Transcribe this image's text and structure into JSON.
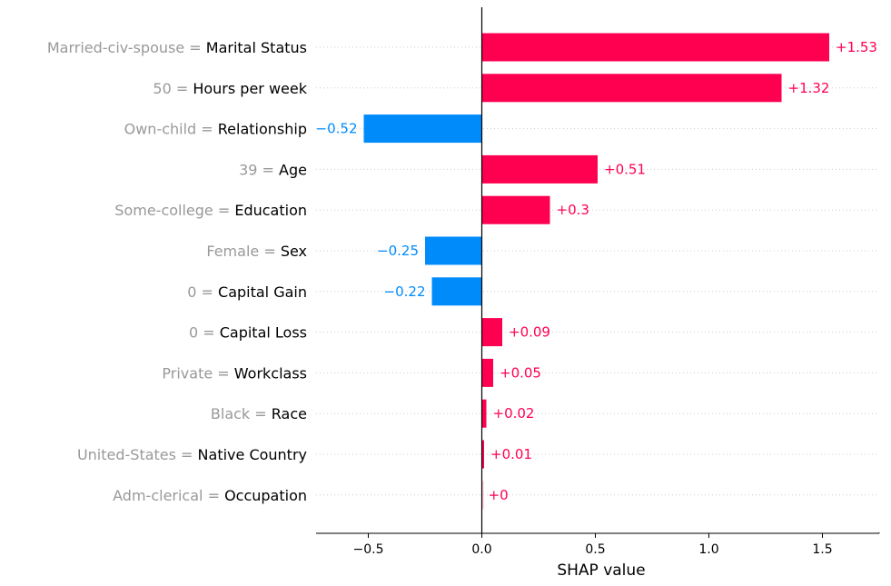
{
  "chart_data": {
    "type": "bar",
    "orientation": "horizontal",
    "xlabel": "SHAP value",
    "xlim": [
      -0.73,
      1.75
    ],
    "xticks": [
      -0.5,
      0.0,
      0.5,
      1.0,
      1.5
    ],
    "xtick_labels": [
      "−0.5",
      "0.0",
      "0.5",
      "1.0",
      "1.5"
    ],
    "grid": "dotted horizontal guides per row",
    "positive_color": "#ff0051",
    "negative_color": "#008bfb",
    "features": [
      {
        "value": "Married-civ-spouse",
        "name": "Marital Status",
        "shap": 1.53,
        "label": "+1.53"
      },
      {
        "value": "50",
        "name": "Hours per week",
        "shap": 1.32,
        "label": "+1.32"
      },
      {
        "value": "Own-child",
        "name": "Relationship",
        "shap": -0.52,
        "label": "−0.52"
      },
      {
        "value": "39",
        "name": "Age",
        "shap": 0.51,
        "label": "+0.51"
      },
      {
        "value": "Some-college",
        "name": "Education",
        "shap": 0.3,
        "label": "+0.3"
      },
      {
        "value": "Female",
        "name": "Sex",
        "shap": -0.25,
        "label": "−0.25"
      },
      {
        "value": "0",
        "name": "Capital Gain",
        "shap": -0.22,
        "label": "−0.22"
      },
      {
        "value": "0",
        "name": "Capital Loss",
        "shap": 0.09,
        "label": "+0.09"
      },
      {
        "value": "Private",
        "name": "Workclass",
        "shap": 0.05,
        "label": "+0.05"
      },
      {
        "value": "Black",
        "name": "Race",
        "shap": 0.02,
        "label": "+0.02"
      },
      {
        "value": "United-States",
        "name": "Native Country",
        "shap": 0.01,
        "label": "+0.01"
      },
      {
        "value": "Adm-clerical",
        "name": "Occupation",
        "shap": 0.0,
        "label": "+0"
      }
    ]
  }
}
